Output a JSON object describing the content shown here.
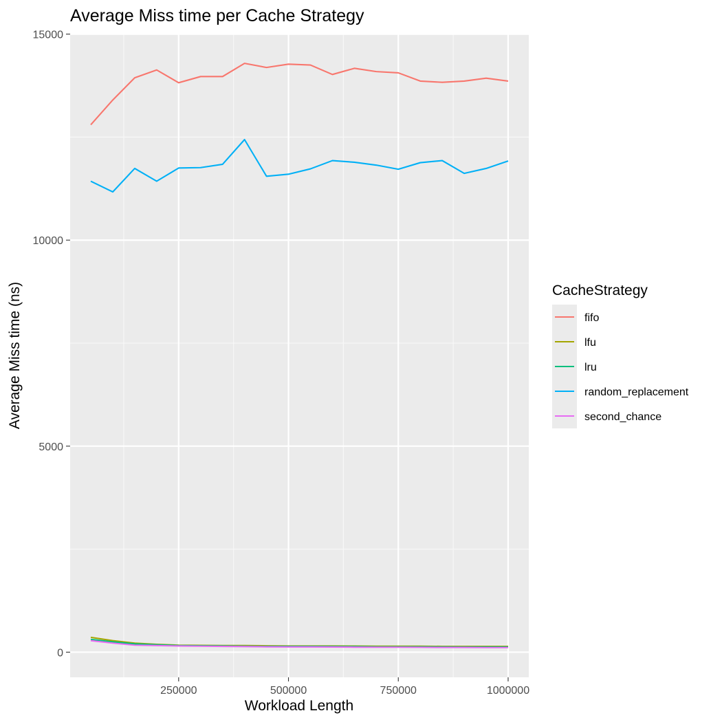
{
  "chart_data": {
    "type": "line",
    "title": "Average Miss time per Cache Strategy",
    "xlabel": "Workload Length",
    "ylabel": "Average Miss time (ns)",
    "xlim": [
      3000,
      1047000
    ],
    "ylim": [
      -610,
      15010
    ],
    "x_ticks": [
      250000,
      500000,
      750000,
      1000000
    ],
    "x_tick_labels": [
      "250000",
      "500000",
      "750000",
      "1000000"
    ],
    "y_ticks": [
      0,
      5000,
      10000,
      15000
    ],
    "y_tick_labels": [
      "0",
      "5000",
      "10000",
      "15000"
    ],
    "grid": true,
    "legend": {
      "title": "CacheStrategy",
      "position": "right"
    },
    "x": [
      50000,
      100000,
      150000,
      200000,
      250000,
      300000,
      350000,
      400000,
      450000,
      500000,
      550000,
      600000,
      650000,
      700000,
      750000,
      800000,
      850000,
      900000,
      950000,
      1000000
    ],
    "series": [
      {
        "name": "fifo",
        "color": "#F8766D",
        "values": [
          12800,
          13400,
          13940,
          14130,
          13820,
          13970,
          13970,
          14290,
          14190,
          14270,
          14250,
          14020,
          14170,
          14090,
          14060,
          13860,
          13830,
          13860,
          13930,
          13860
        ]
      },
      {
        "name": "lfu",
        "color": "#A3A500",
        "values": [
          360,
          280,
          220,
          190,
          170,
          165,
          160,
          160,
          155,
          150,
          150,
          150,
          148,
          145,
          145,
          145,
          140,
          140,
          140,
          140
        ]
      },
      {
        "name": "lru",
        "color": "#00BF7D",
        "values": [
          310,
          250,
          200,
          180,
          160,
          155,
          150,
          145,
          140,
          140,
          140,
          138,
          135,
          130,
          130,
          130,
          128,
          125,
          125,
          125
        ]
      },
      {
        "name": "random_replacement",
        "color": "#00B0F6",
        "values": [
          11430,
          11170,
          11740,
          11430,
          11750,
          11760,
          11840,
          12440,
          11550,
          11600,
          11730,
          11930,
          11890,
          11820,
          11720,
          11880,
          11930,
          11620,
          11740,
          11920
        ]
      },
      {
        "name": "second_chance",
        "color": "#E76BF3",
        "values": [
          280,
          220,
          170,
          160,
          150,
          145,
          140,
          135,
          130,
          128,
          128,
          125,
          122,
          120,
          120,
          118,
          115,
          115,
          112,
          112
        ]
      }
    ]
  }
}
